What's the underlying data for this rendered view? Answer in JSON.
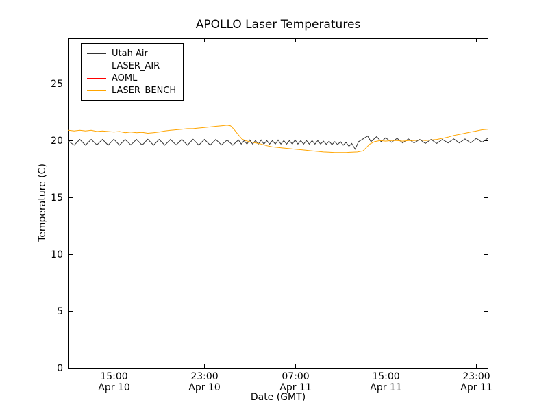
{
  "figure": {
    "title": "APOLLO Laser Temperatures",
    "xlabel": "Date (GMT)",
    "ylabel": "Temperature (C)"
  },
  "chart_data": {
    "type": "line",
    "title": "APOLLO Laser Temperatures",
    "xlabel": "Date (GMT)",
    "ylabel": "Temperature (C)",
    "grid": false,
    "legend_position": "upper left",
    "xlim": [
      0,
      37
    ],
    "ylim": [
      0,
      29
    ],
    "x_unit": "hours from Apr 10 ~11:00 GMT",
    "y_ticks": [
      0,
      5,
      10,
      15,
      20,
      25
    ],
    "x_ticks": [
      {
        "t": 4,
        "time": "15:00",
        "date": "Apr 10"
      },
      {
        "t": 12,
        "time": "23:00",
        "date": "Apr 10"
      },
      {
        "t": 20,
        "time": "07:00",
        "date": "Apr 11"
      },
      {
        "t": 28,
        "time": "15:00",
        "date": "Apr 11"
      },
      {
        "t": 36,
        "time": "23:00",
        "date": "Apr 11"
      }
    ],
    "series": [
      {
        "name": "Utah Air",
        "color": "#333333",
        "points": [
          [
            0,
            19.95
          ],
          [
            0.5,
            19.6
          ],
          [
            1,
            20.1
          ],
          [
            1.5,
            19.6
          ],
          [
            2,
            20.1
          ],
          [
            2.5,
            19.62
          ],
          [
            3,
            20.1
          ],
          [
            3.5,
            19.6
          ],
          [
            4,
            20.12
          ],
          [
            4.5,
            19.6
          ],
          [
            5,
            20.1
          ],
          [
            5.5,
            19.62
          ],
          [
            6,
            20.1
          ],
          [
            6.5,
            19.6
          ],
          [
            7,
            20.12
          ],
          [
            7.5,
            19.6
          ],
          [
            8,
            20.1
          ],
          [
            8.5,
            19.6
          ],
          [
            9,
            20.1
          ],
          [
            9.5,
            19.62
          ],
          [
            10,
            20.1
          ],
          [
            10.5,
            19.6
          ],
          [
            11,
            20.12
          ],
          [
            11.5,
            19.6
          ],
          [
            12,
            20.1
          ],
          [
            12.5,
            19.6
          ],
          [
            13,
            20.1
          ],
          [
            13.5,
            19.62
          ],
          [
            14,
            20.05
          ],
          [
            14.5,
            19.6
          ],
          [
            15,
            20.05
          ],
          [
            15.25,
            19.7
          ],
          [
            15.5,
            20.0
          ],
          [
            15.75,
            19.7
          ],
          [
            16,
            20.05
          ],
          [
            16.25,
            19.7
          ],
          [
            16.5,
            20.0
          ],
          [
            16.75,
            19.7
          ],
          [
            17,
            20.05
          ],
          [
            17.25,
            19.7
          ],
          [
            17.5,
            20.0
          ],
          [
            17.75,
            19.7
          ],
          [
            18,
            20.0
          ],
          [
            18.25,
            19.7
          ],
          [
            18.5,
            20.05
          ],
          [
            18.75,
            19.7
          ],
          [
            19,
            20.0
          ],
          [
            19.25,
            19.7
          ],
          [
            19.5,
            20.0
          ],
          [
            19.75,
            19.7
          ],
          [
            20,
            20.05
          ],
          [
            20.25,
            19.7
          ],
          [
            20.5,
            20.0
          ],
          [
            20.75,
            19.7
          ],
          [
            21,
            20.0
          ],
          [
            21.25,
            19.7
          ],
          [
            21.5,
            20.0
          ],
          [
            21.75,
            19.7
          ],
          [
            22,
            20.0
          ],
          [
            22.25,
            19.7
          ],
          [
            22.5,
            19.95
          ],
          [
            22.75,
            19.68
          ],
          [
            23,
            19.95
          ],
          [
            23.25,
            19.65
          ],
          [
            23.5,
            19.9
          ],
          [
            23.75,
            19.65
          ],
          [
            24,
            19.9
          ],
          [
            24.25,
            19.6
          ],
          [
            24.5,
            19.85
          ],
          [
            24.75,
            19.5
          ],
          [
            25,
            19.75
          ],
          [
            25.3,
            19.25
          ],
          [
            25.6,
            19.9
          ],
          [
            26,
            20.15
          ],
          [
            26.4,
            20.4
          ],
          [
            26.7,
            19.9
          ],
          [
            27.2,
            20.35
          ],
          [
            27.6,
            19.9
          ],
          [
            28,
            20.25
          ],
          [
            28.5,
            19.85
          ],
          [
            29,
            20.2
          ],
          [
            29.5,
            19.8
          ],
          [
            30,
            20.15
          ],
          [
            30.5,
            19.8
          ],
          [
            31,
            20.1
          ],
          [
            31.5,
            19.75
          ],
          [
            32,
            20.1
          ],
          [
            32.5,
            19.75
          ],
          [
            33,
            20.1
          ],
          [
            33.5,
            19.8
          ],
          [
            34,
            20.15
          ],
          [
            34.5,
            19.8
          ],
          [
            35,
            20.15
          ],
          [
            35.5,
            19.8
          ],
          [
            36,
            20.2
          ],
          [
            36.5,
            19.85
          ],
          [
            37,
            20.2
          ]
        ]
      },
      {
        "name": "LASER_AIR",
        "color": "#008000",
        "points": []
      },
      {
        "name": "AOML",
        "color": "#ff0000",
        "points": []
      },
      {
        "name": "LASER_BENCH",
        "color": "#ffa500",
        "points": [
          [
            0,
            20.9
          ],
          [
            0.5,
            20.85
          ],
          [
            1,
            20.9
          ],
          [
            1.5,
            20.85
          ],
          [
            2,
            20.9
          ],
          [
            2.5,
            20.8
          ],
          [
            3,
            20.85
          ],
          [
            3.5,
            20.8
          ],
          [
            4,
            20.75
          ],
          [
            4.5,
            20.8
          ],
          [
            5,
            20.7
          ],
          [
            5.5,
            20.75
          ],
          [
            6,
            20.7
          ],
          [
            6.5,
            20.72
          ],
          [
            7,
            20.65
          ],
          [
            7.5,
            20.7
          ],
          [
            8,
            20.75
          ],
          [
            8.5,
            20.85
          ],
          [
            9,
            20.9
          ],
          [
            9.5,
            20.95
          ],
          [
            10,
            21.0
          ],
          [
            10.5,
            21.05
          ],
          [
            11,
            21.05
          ],
          [
            11.5,
            21.1
          ],
          [
            12,
            21.15
          ],
          [
            12.5,
            21.2
          ],
          [
            13,
            21.25
          ],
          [
            13.5,
            21.3
          ],
          [
            14,
            21.35
          ],
          [
            14.3,
            21.3
          ],
          [
            14.6,
            21.0
          ],
          [
            15,
            20.5
          ],
          [
            15.3,
            20.15
          ],
          [
            15.6,
            20.0
          ],
          [
            16,
            19.9
          ],
          [
            16.5,
            19.8
          ],
          [
            17,
            19.7
          ],
          [
            17.5,
            19.55
          ],
          [
            18,
            19.45
          ],
          [
            18.5,
            19.4
          ],
          [
            19,
            19.35
          ],
          [
            19.5,
            19.3
          ],
          [
            20,
            19.25
          ],
          [
            20.5,
            19.2
          ],
          [
            21,
            19.15
          ],
          [
            21.5,
            19.1
          ],
          [
            22,
            19.05
          ],
          [
            22.5,
            19.0
          ],
          [
            23,
            18.98
          ],
          [
            23.5,
            18.95
          ],
          [
            24,
            18.95
          ],
          [
            24.5,
            18.95
          ],
          [
            25,
            18.98
          ],
          [
            25.5,
            19.0
          ],
          [
            26,
            19.1
          ],
          [
            26.3,
            19.4
          ],
          [
            26.6,
            19.7
          ],
          [
            27,
            19.9
          ],
          [
            27.5,
            20.0
          ],
          [
            28,
            19.95
          ],
          [
            28.5,
            20.0
          ],
          [
            29,
            20.0
          ],
          [
            29.5,
            19.95
          ],
          [
            30,
            20.0
          ],
          [
            30.5,
            20.0
          ],
          [
            31,
            20.05
          ],
          [
            31.5,
            20.0
          ],
          [
            32,
            20.05
          ],
          [
            32.5,
            20.1
          ],
          [
            33,
            20.2
          ],
          [
            33.5,
            20.3
          ],
          [
            34,
            20.45
          ],
          [
            34.5,
            20.55
          ],
          [
            35,
            20.65
          ],
          [
            35.5,
            20.75
          ],
          [
            36,
            20.85
          ],
          [
            36.5,
            20.95
          ],
          [
            37,
            21.0
          ]
        ]
      }
    ]
  }
}
